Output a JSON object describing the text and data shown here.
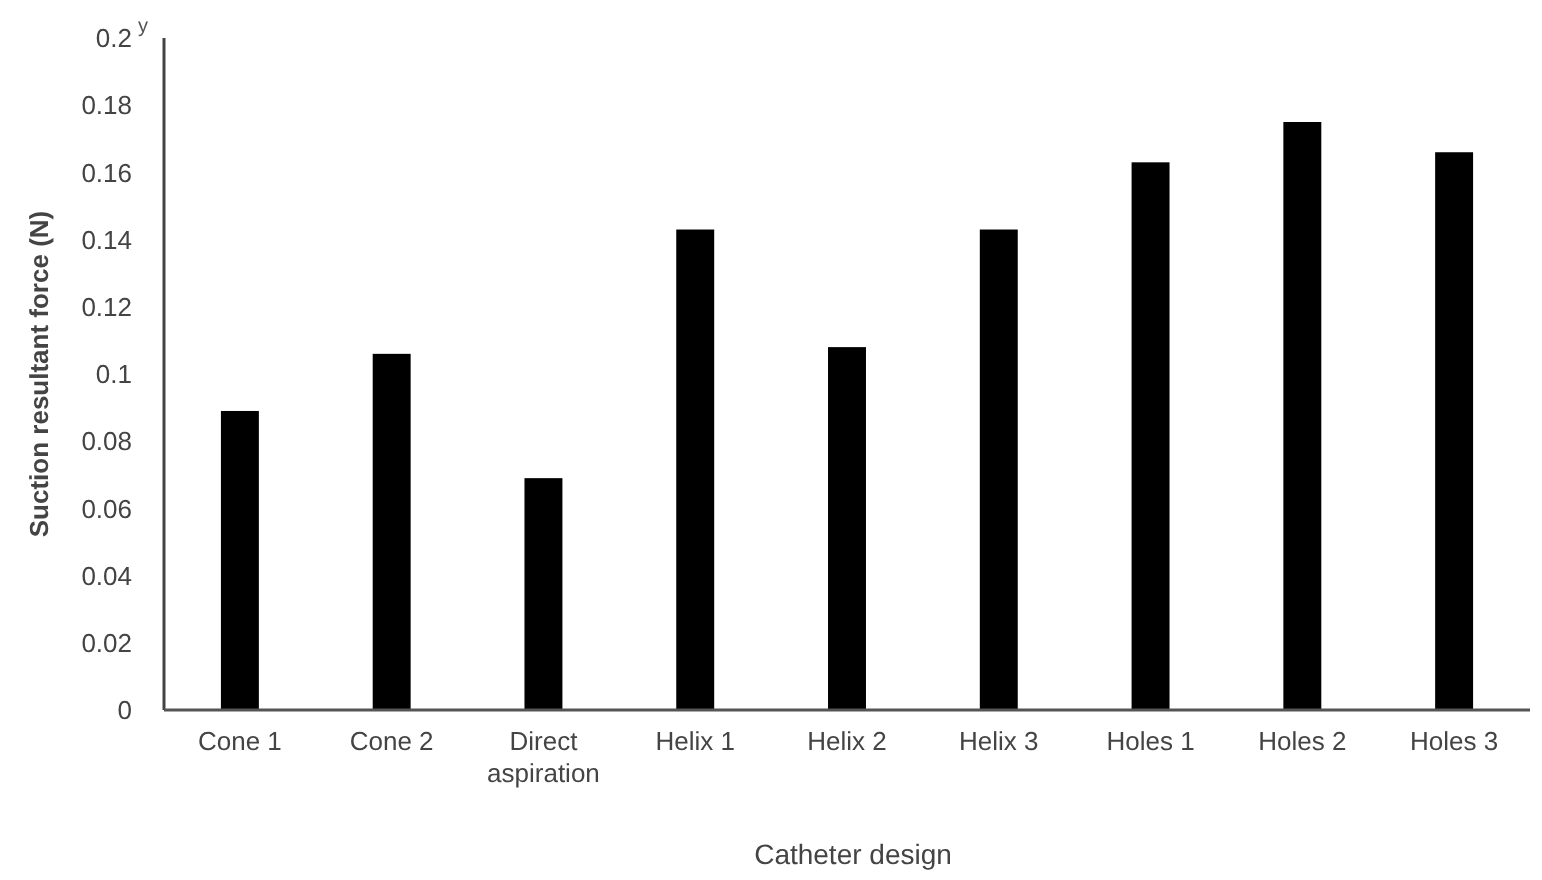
{
  "chart_data": {
    "type": "bar",
    "xlabel": "Catheter design",
    "ylabel": "Suction resultant force (N)",
    "annotations": [
      "y"
    ],
    "categories": [
      "Cone 1",
      "Cone 2",
      "Direct aspiration",
      "Helix 1",
      "Helix 2",
      "Helix 3",
      "Holes 1",
      "Holes 2",
      "Holes 3"
    ],
    "values": [
      0.089,
      0.106,
      0.069,
      0.143,
      0.108,
      0.143,
      0.163,
      0.175,
      0.166
    ],
    "color": "#000000",
    "ylim": [
      0,
      0.2
    ],
    "yticks": [
      0,
      0.02,
      0.04,
      0.06,
      0.08,
      0.1,
      0.12,
      0.14,
      0.16,
      0.18,
      0.2
    ],
    "grid": false
  }
}
